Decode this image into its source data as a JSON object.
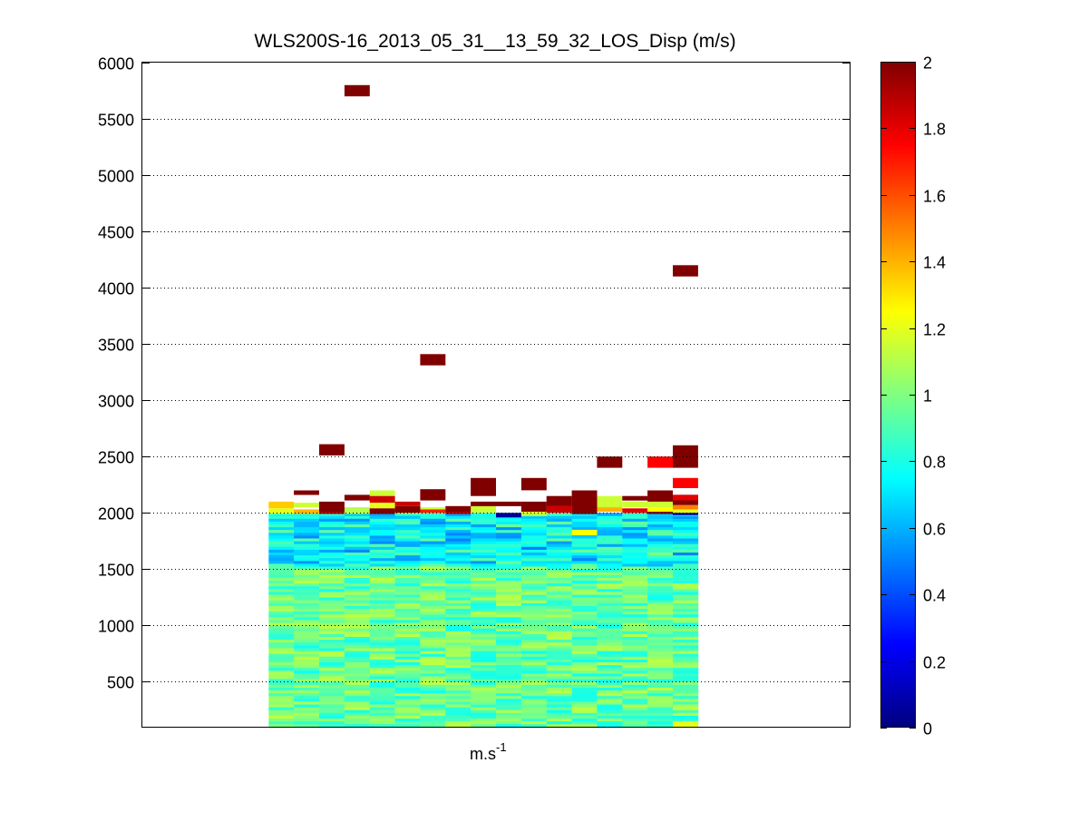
{
  "chart_data": {
    "type": "heatmap",
    "title": "WLS200S-16_2013_05_31__13_59_32_LOS_Disp (m/s)",
    "xlabel_base": "m.s",
    "xlabel_exp": "-1",
    "ylabel": "",
    "ylim": [
      100,
      6000
    ],
    "yticks": [
      500,
      1000,
      1500,
      2000,
      2500,
      3000,
      3500,
      4000,
      4500,
      5000,
      5500,
      6000
    ],
    "xlim": [
      0,
      28
    ],
    "columns": 17,
    "column_range": [
      5,
      22
    ],
    "grid": "y-dotted",
    "colormap": "jet",
    "clim": [
      0,
      2
    ],
    "colorbar_ticks": [
      0,
      0.2,
      0.4,
      0.6,
      0.8,
      1,
      1.2,
      1.4,
      1.6,
      1.8,
      2
    ],
    "base_value_estimate": 0.95,
    "base_altitude_range": [
      100,
      1980
    ],
    "highlights": [
      {
        "col": 0,
        "y0": 2040,
        "y1": 2100,
        "v": 1.35
      },
      {
        "col": 0,
        "y0": 1990,
        "y1": 2040,
        "v": 1.2
      },
      {
        "col": 1,
        "y0": 2050,
        "y1": 2090,
        "v": 1.15
      },
      {
        "col": 1,
        "y0": 1990,
        "y1": 2030,
        "v": 1.4
      },
      {
        "col": 2,
        "y0": 1990,
        "y1": 2010,
        "v": 1.9
      },
      {
        "col": 3,
        "y0": 1990,
        "y1": 2050,
        "v": 1.1
      },
      {
        "col": 4,
        "y0": 2150,
        "y1": 2200,
        "v": 1.15
      },
      {
        "col": 4,
        "y0": 2090,
        "y1": 2150,
        "v": 1.85
      },
      {
        "col": 4,
        "y0": 2040,
        "y1": 2090,
        "v": 1.2
      },
      {
        "col": 4,
        "y0": 1990,
        "y1": 2040,
        "v": 2.0
      },
      {
        "col": 5,
        "y0": 2060,
        "y1": 2100,
        "v": 1.85
      },
      {
        "col": 5,
        "y0": 1990,
        "y1": 2060,
        "v": 1.15
      },
      {
        "col": 6,
        "y0": 2000,
        "y1": 2050,
        "v": 1.15
      },
      {
        "col": 7,
        "y0": 1990,
        "y1": 2010,
        "v": 1.9
      },
      {
        "col": 8,
        "y0": 2000,
        "y1": 2060,
        "v": 1.15
      },
      {
        "col": 9,
        "y0": 1960,
        "y1": 2000,
        "v": 0.05
      },
      {
        "col": 10,
        "y0": 2000,
        "y1": 2060,
        "v": 1.25
      },
      {
        "col": 10,
        "y0": 1970,
        "y1": 2000,
        "v": 1.1
      },
      {
        "col": 11,
        "y0": 2000,
        "y1": 2060,
        "v": 1.85
      },
      {
        "col": 12,
        "y0": 1990,
        "y1": 2050,
        "v": 1.1
      },
      {
        "col": 12,
        "y0": 1800,
        "y1": 1850,
        "v": 1.25
      },
      {
        "col": 13,
        "y0": 2050,
        "y1": 2150,
        "v": 1.15
      },
      {
        "col": 13,
        "y0": 2010,
        "y1": 2050,
        "v": 1.4
      },
      {
        "col": 14,
        "y0": 2050,
        "y1": 2100,
        "v": 1.15
      },
      {
        "col": 14,
        "y0": 2000,
        "y1": 2040,
        "v": 1.8
      },
      {
        "col": 15,
        "y0": 2050,
        "y1": 2100,
        "v": 1.15
      },
      {
        "col": 15,
        "y0": 2000,
        "y1": 2050,
        "v": 1.25
      },
      {
        "col": 16,
        "y0": 2030,
        "y1": 2070,
        "v": 1.5
      },
      {
        "col": 16,
        "y0": 1980,
        "y1": 2030,
        "v": 1.2
      },
      {
        "col": 16,
        "y0": 100,
        "y1": 150,
        "v": 1.2
      }
    ],
    "upper_cells": [
      {
        "col": 1,
        "y0": 2160,
        "y1": 2200,
        "v": 2.0
      },
      {
        "col": 2,
        "y0": 2010,
        "y1": 2100,
        "v": 2.0
      },
      {
        "col": 2,
        "y0": 2510,
        "y1": 2610,
        "v": 2.0
      },
      {
        "col": 3,
        "y0": 2110,
        "y1": 2160,
        "v": 2.0
      },
      {
        "col": 3,
        "y0": 5700,
        "y1": 5800,
        "v": 2.0
      },
      {
        "col": 5,
        "y0": 2000,
        "y1": 2060,
        "v": 2.0
      },
      {
        "col": 6,
        "y0": 2000,
        "y1": 2030,
        "v": 1.7
      },
      {
        "col": 6,
        "y0": 2110,
        "y1": 2210,
        "v": 2.0
      },
      {
        "col": 6,
        "y0": 3310,
        "y1": 3410,
        "v": 2.0
      },
      {
        "col": 7,
        "y0": 2010,
        "y1": 2060,
        "v": 2.0
      },
      {
        "col": 8,
        "y0": 2060,
        "y1": 2100,
        "v": 2.0
      },
      {
        "col": 8,
        "y0": 2150,
        "y1": 2310,
        "v": 2.0
      },
      {
        "col": 9,
        "y0": 2060,
        "y1": 2100,
        "v": 2.0
      },
      {
        "col": 10,
        "y0": 2010,
        "y1": 2100,
        "v": 2.0
      },
      {
        "col": 10,
        "y0": 2200,
        "y1": 2310,
        "v": 2.0
      },
      {
        "col": 11,
        "y0": 2060,
        "y1": 2150,
        "v": 2.0
      },
      {
        "col": 12,
        "y0": 1990,
        "y1": 2200,
        "v": 2.0
      },
      {
        "col": 13,
        "y0": 2400,
        "y1": 2500,
        "v": 2.0
      },
      {
        "col": 14,
        "y0": 2110,
        "y1": 2150,
        "v": 2.0
      },
      {
        "col": 15,
        "y0": 2100,
        "y1": 2200,
        "v": 2.0
      },
      {
        "col": 15,
        "y0": 2400,
        "y1": 2500,
        "v": 1.75
      },
      {
        "col": 15,
        "y0": 1990,
        "y1": 2010,
        "v": 2.0
      },
      {
        "col": 16,
        "y0": 2100,
        "y1": 2160,
        "v": 2.0
      },
      {
        "col": 16,
        "y0": 2220,
        "y1": 2310,
        "v": 1.75
      },
      {
        "col": 16,
        "y0": 4100,
        "y1": 4200,
        "v": 2.0
      },
      {
        "col": 16,
        "y0": 1980,
        "y1": 2000,
        "v": 0.1
      },
      {
        "col": 17,
        "y0": 2110,
        "y1": 2160,
        "v": 1.8
      },
      {
        "col": 17,
        "y0": 2070,
        "y1": 2110,
        "v": 2.0
      },
      {
        "col": 17,
        "y0": 2400,
        "y1": 2600,
        "v": 2.0
      }
    ]
  }
}
